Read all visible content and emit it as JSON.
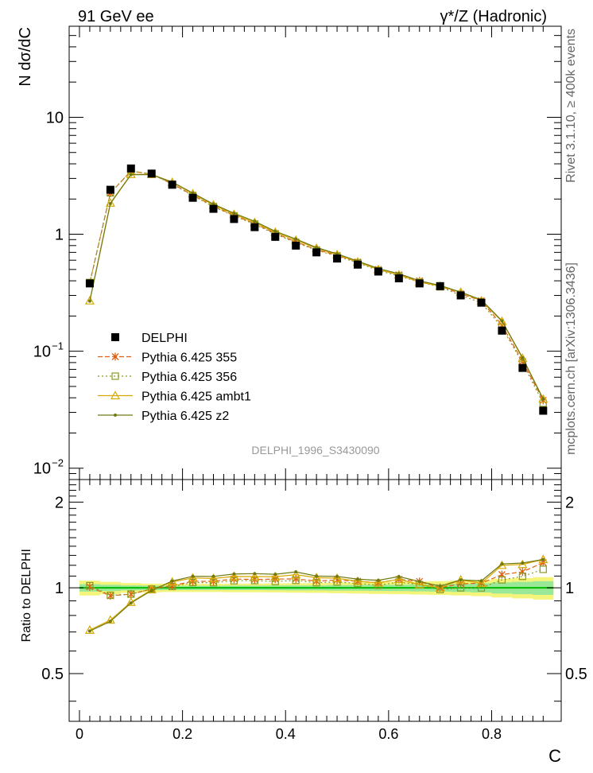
{
  "chart_data": {
    "type": "line",
    "top_left_label": "91 GeV ee",
    "top_right_label": "γ*/Z (Hadronic)",
    "ylabel": "N dσ/dC",
    "ratio_ylabel": "Ratio to DELPHI",
    "xlabel": "C",
    "analysis_id": "DELPHI_1996_S3430090",
    "side_label_top": "Rivet 3.1.10, ≥ 400k events",
    "side_label_bottom": "mcplots.cern.ch [arXiv:1306.3436]",
    "y_scale": "log",
    "ylim": [
      0.008,
      60
    ],
    "xlim": [
      -0.02,
      0.935
    ],
    "ratio_ylim": [
      0.34,
      2.4
    ],
    "x_ticks": [
      0,
      0.2,
      0.4,
      0.6,
      0.8
    ],
    "x_tick_labels": [
      "0",
      "0.2",
      "0.4",
      "0.6",
      "0.8"
    ],
    "y_tick_labels": [
      "10^{-2}",
      "10^{-1}",
      "1",
      "10"
    ],
    "ratio_ticks": [
      0.5,
      1,
      2
    ],
    "ratio_tick_labels": [
      "0.5",
      "1",
      "2"
    ],
    "legend_position": "lower-left",
    "x": [
      0.02,
      0.06,
      0.1,
      0.14,
      0.18,
      0.22,
      0.26,
      0.3,
      0.34,
      0.38,
      0.42,
      0.46,
      0.5,
      0.54,
      0.58,
      0.62,
      0.66,
      0.7,
      0.74,
      0.78,
      0.82,
      0.86,
      0.9
    ],
    "data": {
      "name": "DELPHI",
      "color": "#000000",
      "values": [
        0.38,
        2.4,
        3.65,
        3.3,
        2.65,
        2.05,
        1.65,
        1.35,
        1.15,
        0.95,
        0.8,
        0.7,
        0.62,
        0.55,
        0.48,
        0.42,
        0.38,
        0.36,
        0.3,
        0.26,
        0.15,
        0.072,
        0.031
      ]
    },
    "series": [
      {
        "name": "Pythia 6.425 355",
        "color": "#e06010",
        "dash": "6,3",
        "marker": "star",
        "values": [
          0.383,
          2.25,
          3.47,
          3.27,
          2.7,
          2.16,
          1.74,
          1.45,
          1.23,
          1.02,
          0.86,
          0.74,
          0.66,
          0.58,
          0.5,
          0.45,
          0.4,
          0.36,
          0.31,
          0.27,
          0.167,
          0.082,
          0.038
        ]
      },
      {
        "name": "Pythia 6.425 356",
        "color": "#8a9a20",
        "dash": "2,3",
        "marker": "square",
        "values": [
          0.387,
          2.26,
          3.47,
          3.27,
          2.68,
          2.14,
          1.72,
          1.43,
          1.22,
          1.0,
          0.85,
          0.73,
          0.65,
          0.57,
          0.49,
          0.44,
          0.39,
          0.355,
          0.3,
          0.26,
          0.16,
          0.079,
          0.036
        ]
      },
      {
        "name": "Pythia 6.425 ambt1",
        "color": "#d8a800",
        "dash": "",
        "marker": "triangle",
        "values": [
          0.27,
          1.85,
          3.25,
          3.25,
          2.78,
          2.22,
          1.78,
          1.48,
          1.26,
          1.04,
          0.89,
          0.76,
          0.67,
          0.58,
          0.5,
          0.45,
          0.39,
          0.36,
          0.32,
          0.27,
          0.18,
          0.087,
          0.039
        ]
      },
      {
        "name": "Pythia 6.425 z2",
        "color": "#707a10",
        "dash": "",
        "marker": "dot",
        "values": [
          0.268,
          1.83,
          3.23,
          3.23,
          2.8,
          2.25,
          1.81,
          1.51,
          1.29,
          1.06,
          0.91,
          0.77,
          0.68,
          0.59,
          0.51,
          0.46,
          0.4,
          0.365,
          0.32,
          0.275,
          0.182,
          0.088,
          0.039
        ]
      }
    ],
    "ratio_band": {
      "x": [
        0.0,
        0.04,
        0.08,
        0.12,
        0.16,
        0.2,
        0.24,
        0.28,
        0.32,
        0.36,
        0.4,
        0.44,
        0.48,
        0.52,
        0.56,
        0.6,
        0.64,
        0.68,
        0.72,
        0.76,
        0.8,
        0.84,
        0.88,
        0.92
      ],
      "inner": [
        0.03,
        0.025,
        0.02,
        0.018,
        0.017,
        0.017,
        0.017,
        0.018,
        0.018,
        0.019,
        0.02,
        0.02,
        0.022,
        0.023,
        0.025,
        0.026,
        0.028,
        0.03,
        0.033,
        0.037,
        0.045,
        0.05,
        0.055
      ],
      "outer": [
        0.06,
        0.05,
        0.04,
        0.035,
        0.033,
        0.033,
        0.033,
        0.034,
        0.035,
        0.036,
        0.038,
        0.04,
        0.042,
        0.045,
        0.048,
        0.05,
        0.053,
        0.056,
        0.06,
        0.065,
        0.075,
        0.082,
        0.09
      ],
      "inner_color": "#98e898",
      "outer_color": "#f4f47a",
      "ref_color": "#00bb00"
    }
  }
}
